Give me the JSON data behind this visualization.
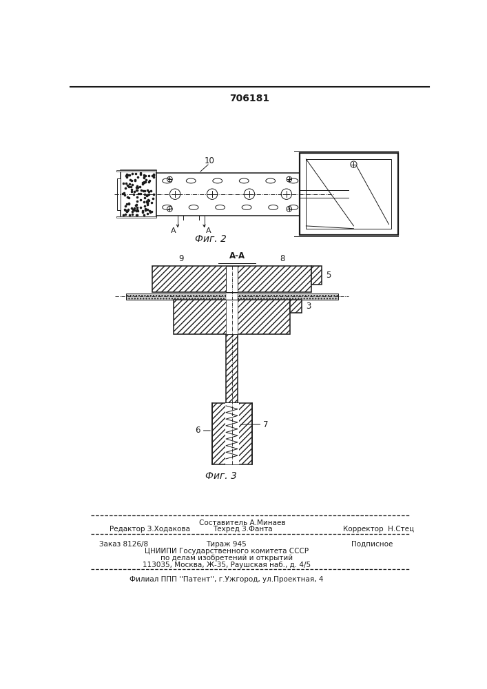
{
  "title": "706181",
  "fig2_caption": "Фиг. 2",
  "fig3_caption": "Фиг. 3",
  "footer_line1_left": "Редактор З.Ходакова",
  "footer_line1_center_top": "Составитель А.Минаев",
  "footer_line1_center_bot": "Техред З.Фанта",
  "footer_line1_right": "Корректор  Н.Стец",
  "footer_line2_left": "Заказ 8126/8",
  "footer_line2_center": "Тираж 945",
  "footer_line2_right": "Подписное",
  "footer_line3": "ЦНИИПИ Государственного комитета СССР",
  "footer_line4": "по делам изобретений и открытий",
  "footer_line5": "113035, Москва, Ж-35, Раушская наб., д. 4/5",
  "footer_line6": "Филиал ППП ''Патент'', г.Ужгород, ул.Проектная, 4",
  "bg_color": "#ffffff",
  "line_color": "#1a1a1a"
}
